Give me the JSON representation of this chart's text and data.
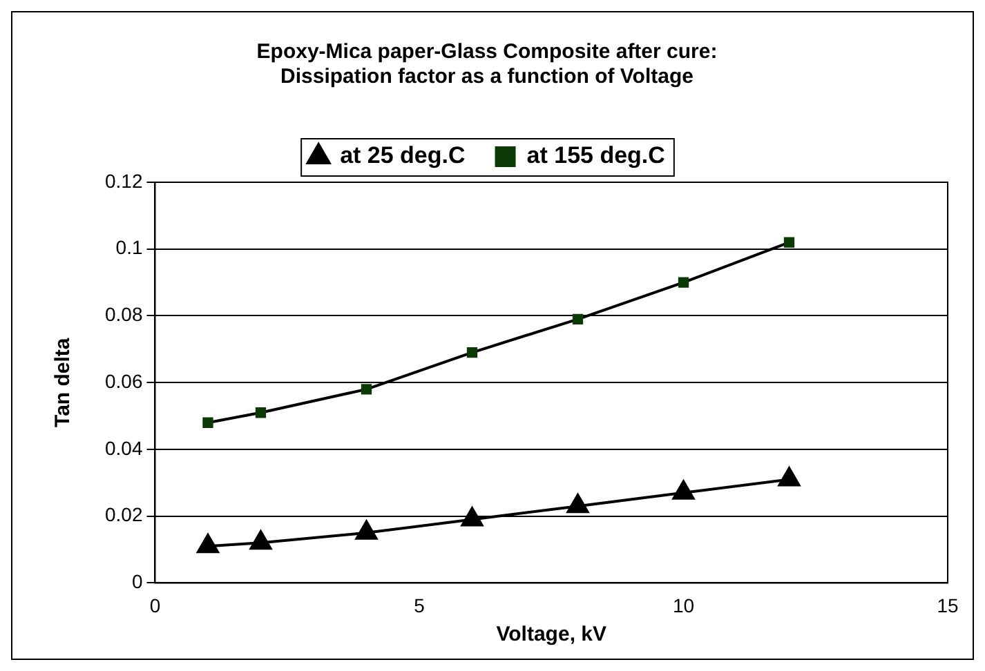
{
  "chart_data": {
    "type": "line",
    "title": [
      "Epoxy-Mica paper-Glass Composite after cure:",
      "Dissipation factor as a function of Voltage"
    ],
    "xlabel": "Voltage, kV",
    "ylabel": "Tan delta",
    "x": [
      1,
      2,
      4,
      6,
      8,
      10,
      12
    ],
    "series": [
      {
        "name": "at 25 deg.C",
        "color": "#000000",
        "marker": "triangle",
        "values": [
          0.011,
          0.012,
          0.015,
          0.019,
          0.023,
          0.027,
          0.031
        ]
      },
      {
        "name": "at 155 deg.C",
        "color": "#0b3a06",
        "marker": "square",
        "values": [
          0.048,
          0.051,
          0.058,
          0.069,
          0.079,
          0.09,
          0.102
        ]
      }
    ],
    "xlim": [
      0,
      15
    ],
    "xticks": [
      0,
      5,
      10,
      15
    ],
    "ylim": [
      0,
      0.12
    ],
    "yticks": [
      0,
      0.02,
      0.04,
      0.06,
      0.08,
      0.1,
      0.12
    ],
    "grid": "y",
    "legend": "top"
  }
}
